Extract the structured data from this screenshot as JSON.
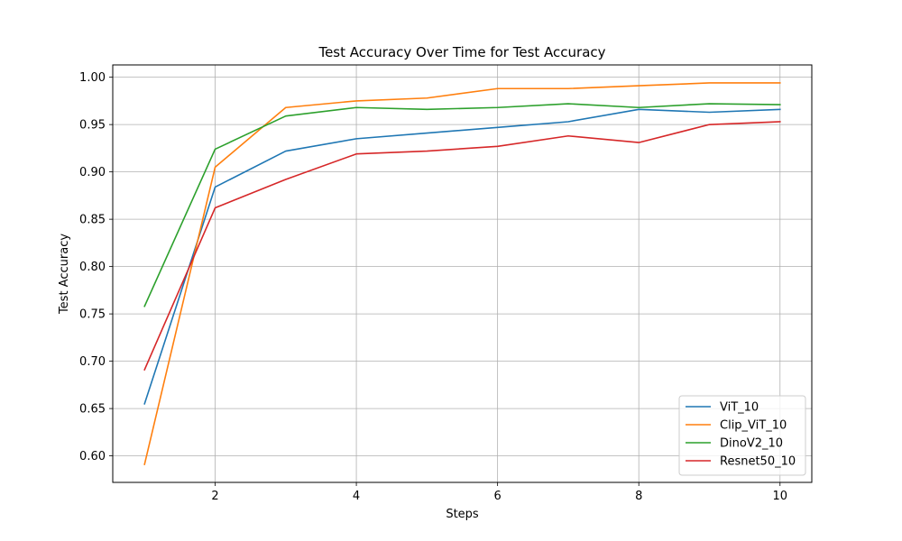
{
  "chart_data": {
    "type": "line",
    "title": "Test Accuracy Over Time for Test Accuracy",
    "xlabel": "Steps",
    "ylabel": "Test Accuracy",
    "x": [
      1,
      2,
      3,
      4,
      5,
      6,
      7,
      8,
      9,
      10
    ],
    "xlim": [
      0.55,
      10.45
    ],
    "ylim": [
      0.572,
      1.013
    ],
    "xticks": [
      2,
      4,
      6,
      8,
      10
    ],
    "yticks": [
      0.6,
      0.65,
      0.7,
      0.75,
      0.8,
      0.85,
      0.9,
      0.95,
      1.0
    ],
    "ytick_labels": [
      "0.60",
      "0.65",
      "0.70",
      "0.75",
      "0.80",
      "0.85",
      "0.90",
      "0.95",
      "1.00"
    ],
    "grid": true,
    "legend_position": "bottom-right",
    "series": [
      {
        "name": "ViT_10",
        "color": "#1f77b4",
        "values": [
          0.655,
          0.884,
          0.922,
          0.935,
          0.941,
          0.947,
          0.953,
          0.966,
          0.963,
          0.966
        ]
      },
      {
        "name": "Clip_ViT_10",
        "color": "#ff7f0e",
        "values": [
          0.591,
          0.905,
          0.968,
          0.975,
          0.978,
          0.988,
          0.988,
          0.991,
          0.994,
          0.994
        ]
      },
      {
        "name": "DinoV2_10",
        "color": "#2ca02c",
        "values": [
          0.758,
          0.924,
          0.959,
          0.968,
          0.966,
          0.968,
          0.972,
          0.968,
          0.972,
          0.971
        ]
      },
      {
        "name": "Resnet50_10",
        "color": "#d62728",
        "values": [
          0.691,
          0.862,
          0.892,
          0.919,
          0.922,
          0.927,
          0.938,
          0.931,
          0.95,
          0.953
        ]
      }
    ]
  }
}
